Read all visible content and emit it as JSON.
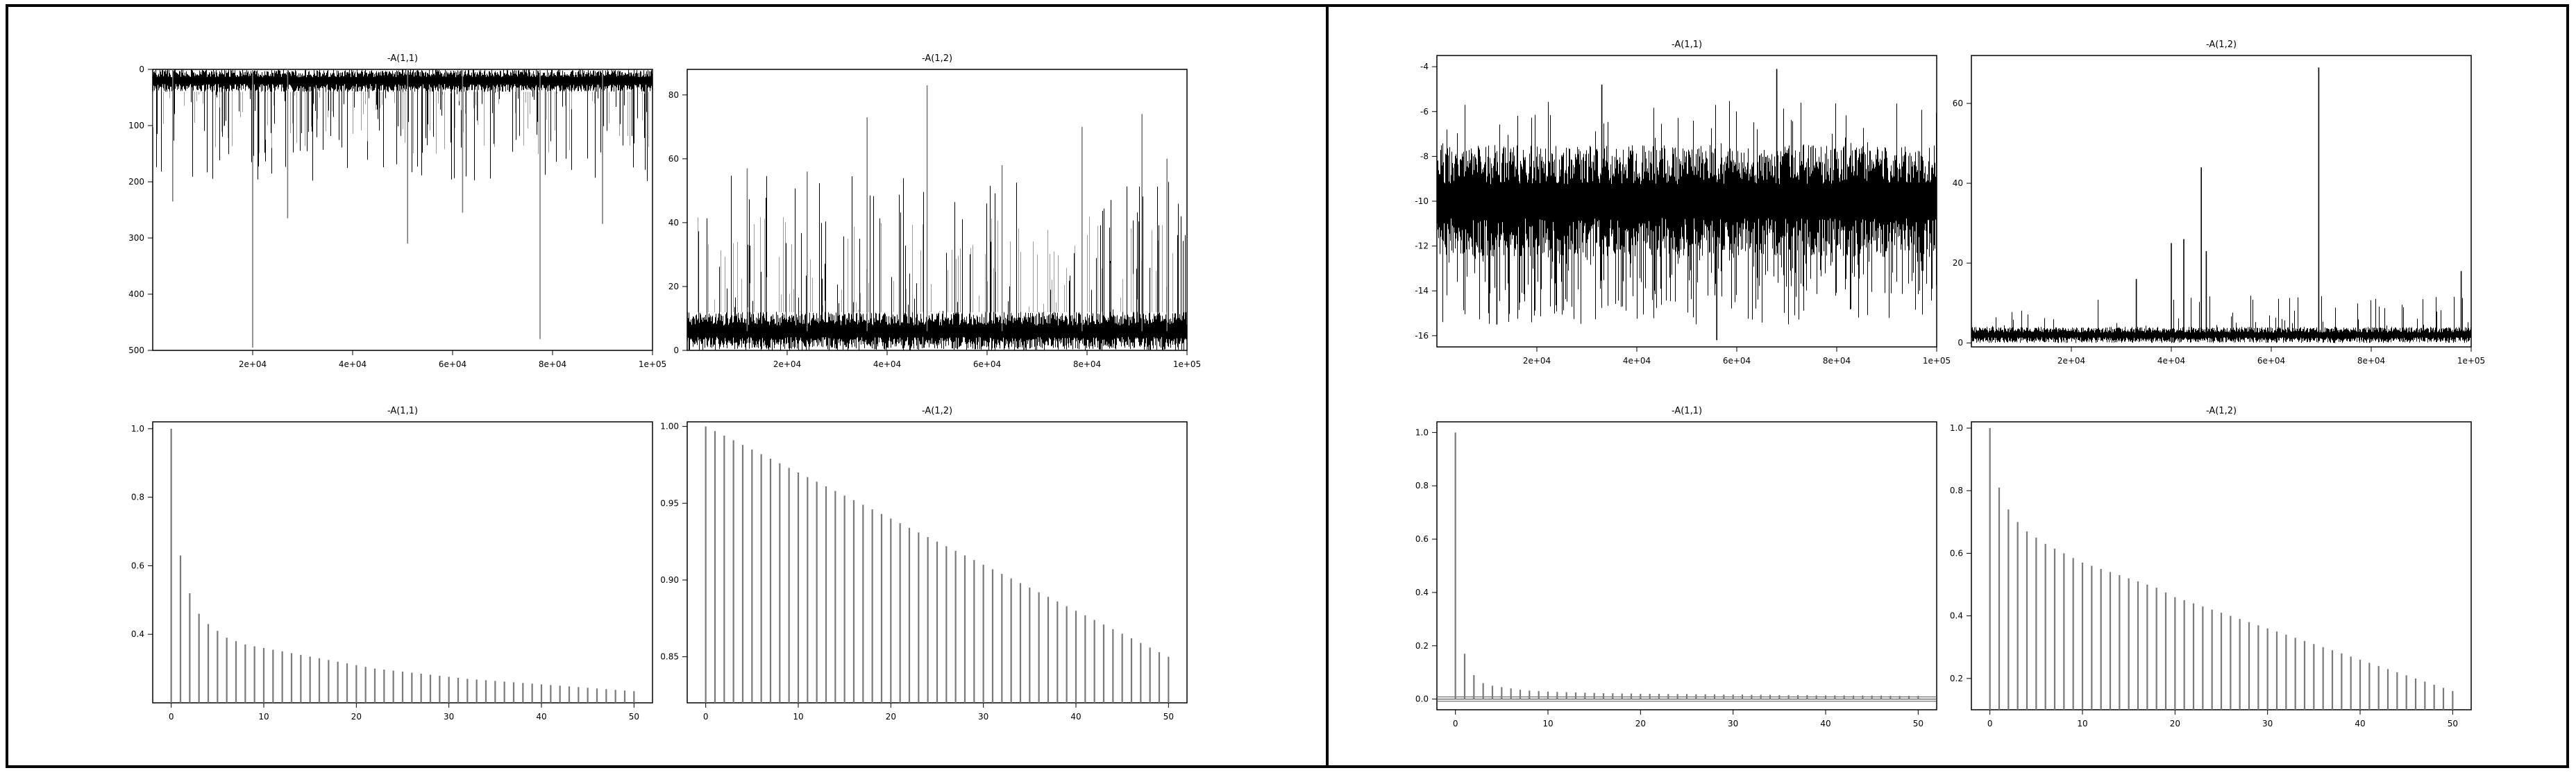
{
  "figure": {
    "left_panel": {
      "name": "left"
    },
    "right_panel": {
      "name": "right"
    }
  },
  "chart_data": [
    {
      "id": "L_trace_11",
      "type": "line",
      "title": "-A(1,1)",
      "x_ticks": [
        "2e+04",
        "4e+04",
        "6e+04",
        "8e+04",
        "1e+05"
      ],
      "x_tick_values": [
        20000,
        40000,
        60000,
        80000,
        100000
      ],
      "xlim": [
        0,
        100000
      ],
      "y_ticks": [
        "0",
        "100",
        "200",
        "300",
        "400",
        "500"
      ],
      "y_tick_values": [
        0,
        100,
        200,
        300,
        400,
        500
      ],
      "ylim": [
        500,
        0
      ],
      "y_reversed": true,
      "band": {
        "low": 0,
        "high": 40,
        "spike_min": 40,
        "spike_max": 200,
        "spike_freq": 0.18
      },
      "spikes": [
        {
          "x": 20000,
          "y": 495
        },
        {
          "x": 77500,
          "y": 480
        },
        {
          "x": 51000,
          "y": 310
        },
        {
          "x": 90000,
          "y": 275
        },
        {
          "x": 27000,
          "y": 265
        },
        {
          "x": 4000,
          "y": 235
        },
        {
          "x": 62000,
          "y": 255
        }
      ],
      "color": "#000000"
    },
    {
      "id": "L_trace_12",
      "type": "line",
      "title": "-A(1,2)",
      "x_ticks": [
        "2e+04",
        "4e+04",
        "6e+04",
        "8e+04",
        "1e+05"
      ],
      "x_tick_values": [
        20000,
        40000,
        60000,
        80000,
        100000
      ],
      "xlim": [
        0,
        100000
      ],
      "y_ticks": [
        "0",
        "20",
        "40",
        "60",
        "80"
      ],
      "y_tick_values": [
        0,
        20,
        40,
        60,
        80
      ],
      "ylim": [
        0,
        88
      ],
      "y_reversed": false,
      "band": {
        "low": 0,
        "high": 12,
        "spike_min": 12,
        "spike_max": 55,
        "spike_freq": 0.12
      },
      "spikes": [
        {
          "x": 48000,
          "y": 83
        },
        {
          "x": 36000,
          "y": 73
        },
        {
          "x": 91000,
          "y": 74
        },
        {
          "x": 79000,
          "y": 70
        },
        {
          "x": 12000,
          "y": 57
        },
        {
          "x": 24000,
          "y": 56
        },
        {
          "x": 63000,
          "y": 58
        },
        {
          "x": 96000,
          "y": 60
        }
      ],
      "color": "#000000"
    },
    {
      "id": "L_acf_11",
      "type": "bar",
      "title": "-A(1,1)",
      "x_ticks": [
        "0",
        "10",
        "20",
        "30",
        "40",
        "50"
      ],
      "x_tick_values": [
        0,
        10,
        20,
        30,
        40,
        50
      ],
      "xlim": [
        -2,
        52
      ],
      "y_ticks": [
        "0.4",
        "0.6",
        "0.8",
        "1.0"
      ],
      "y_tick_values": [
        0.4,
        0.6,
        0.8,
        1.0
      ],
      "ylim": [
        0.2,
        1.02
      ],
      "lags": [
        0,
        1,
        2,
        3,
        4,
        5,
        6,
        7,
        8,
        9,
        10,
        11,
        12,
        13,
        14,
        15,
        16,
        17,
        18,
        19,
        20,
        21,
        22,
        23,
        24,
        25,
        26,
        27,
        28,
        29,
        30,
        31,
        32,
        33,
        34,
        35,
        36,
        37,
        38,
        39,
        40,
        41,
        42,
        43,
        44,
        45,
        46,
        47,
        48,
        49,
        50
      ],
      "values": [
        1.0,
        0.63,
        0.52,
        0.46,
        0.43,
        0.41,
        0.39,
        0.38,
        0.37,
        0.365,
        0.36,
        0.355,
        0.35,
        0.345,
        0.34,
        0.335,
        0.33,
        0.325,
        0.32,
        0.315,
        0.31,
        0.305,
        0.3,
        0.297,
        0.294,
        0.291,
        0.288,
        0.285,
        0.282,
        0.279,
        0.276,
        0.273,
        0.27,
        0.268,
        0.266,
        0.264,
        0.262,
        0.26,
        0.258,
        0.256,
        0.254,
        0.252,
        0.25,
        0.248,
        0.246,
        0.244,
        0.242,
        0.24,
        0.238,
        0.236,
        0.234
      ],
      "color": "#7a7a7a"
    },
    {
      "id": "L_acf_12",
      "type": "bar",
      "title": "-A(1,2)",
      "x_ticks": [
        "0",
        "10",
        "20",
        "30",
        "40",
        "50"
      ],
      "x_tick_values": [
        0,
        10,
        20,
        30,
        40,
        50
      ],
      "xlim": [
        -2,
        52
      ],
      "y_ticks": [
        "0.85",
        "0.90",
        "0.95",
        "1.00"
      ],
      "y_tick_values": [
        0.85,
        0.9,
        0.95,
        1.0
      ],
      "ylim": [
        0.82,
        1.003
      ],
      "lags": [
        0,
        1,
        2,
        3,
        4,
        5,
        6,
        7,
        8,
        9,
        10,
        11,
        12,
        13,
        14,
        15,
        16,
        17,
        18,
        19,
        20,
        21,
        22,
        23,
        24,
        25,
        26,
        27,
        28,
        29,
        30,
        31,
        32,
        33,
        34,
        35,
        36,
        37,
        38,
        39,
        40,
        41,
        42,
        43,
        44,
        45,
        46,
        47,
        48,
        49,
        50
      ],
      "values": [
        1.0,
        0.997,
        0.994,
        0.991,
        0.988,
        0.985,
        0.982,
        0.979,
        0.976,
        0.973,
        0.97,
        0.967,
        0.964,
        0.961,
        0.958,
        0.955,
        0.952,
        0.949,
        0.946,
        0.943,
        0.94,
        0.937,
        0.934,
        0.931,
        0.928,
        0.925,
        0.922,
        0.919,
        0.916,
        0.913,
        0.91,
        0.907,
        0.904,
        0.901,
        0.898,
        0.895,
        0.892,
        0.889,
        0.886,
        0.883,
        0.88,
        0.877,
        0.874,
        0.871,
        0.868,
        0.865,
        0.862,
        0.859,
        0.856,
        0.853,
        0.85
      ],
      "color": "#7a7a7a"
    },
    {
      "id": "R_trace_11",
      "type": "line",
      "title": "-A(1,1)",
      "x_ticks": [
        "2e+04",
        "4e+04",
        "6e+04",
        "8e+04",
        "1e+05"
      ],
      "x_tick_values": [
        20000,
        40000,
        60000,
        80000,
        100000
      ],
      "xlim": [
        0,
        100000
      ],
      "y_ticks": [
        "-4",
        "-6",
        "-8",
        "-10",
        "-12",
        "-14",
        "-16"
      ],
      "y_tick_values": [
        -4,
        -6,
        -8,
        -10,
        -12,
        -14,
        -16
      ],
      "ylim": [
        -16.5,
        -3.5
      ],
      "y_reversed": false,
      "band": {
        "low": -12.5,
        "high": -7.5,
        "spike_min": -15.5,
        "spike_max": -5.5,
        "spike_freq": 0.25
      },
      "spikes": [
        {
          "x": 68000,
          "y": -4.1
        },
        {
          "x": 56000,
          "y": -16.2
        },
        {
          "x": 33000,
          "y": -4.8
        },
        {
          "x": 12000,
          "y": -15.5
        }
      ],
      "color": "#000000"
    },
    {
      "id": "R_trace_12",
      "type": "line",
      "title": "-A(1,2)",
      "x_ticks": [
        "2e+04",
        "4e+04",
        "6e+04",
        "8e+04",
        "1e+05"
      ],
      "x_tick_values": [
        20000,
        40000,
        60000,
        80000,
        100000
      ],
      "xlim": [
        0,
        100000
      ],
      "y_ticks": [
        "0",
        "20",
        "40",
        "60"
      ],
      "y_tick_values": [
        0,
        20,
        40,
        60
      ],
      "ylim": [
        -1,
        72
      ],
      "y_reversed": false,
      "band": {
        "low": 0,
        "high": 4,
        "spike_min": 4,
        "spike_max": 12,
        "spike_freq": 0.08
      },
      "spikes": [
        {
          "x": 69500,
          "y": 69
        },
        {
          "x": 46000,
          "y": 44
        },
        {
          "x": 40000,
          "y": 25
        },
        {
          "x": 42500,
          "y": 26
        },
        {
          "x": 47000,
          "y": 23
        },
        {
          "x": 98000,
          "y": 18
        },
        {
          "x": 33000,
          "y": 16
        }
      ],
      "color": "#000000"
    },
    {
      "id": "R_acf_11",
      "type": "bar",
      "title": "-A(1,1)",
      "x_ticks": [
        "0",
        "10",
        "20",
        "30",
        "40",
        "50"
      ],
      "x_tick_values": [
        0,
        10,
        20,
        30,
        40,
        50
      ],
      "xlim": [
        -2,
        52
      ],
      "y_ticks": [
        "0.0",
        "0.2",
        "0.4",
        "0.6",
        "0.8",
        "1.0"
      ],
      "y_tick_values": [
        0.0,
        0.2,
        0.4,
        0.6,
        0.8,
        1.0
      ],
      "ylim": [
        -0.04,
        1.04
      ],
      "lags": [
        0,
        1,
        2,
        3,
        4,
        5,
        6,
        7,
        8,
        9,
        10,
        11,
        12,
        13,
        14,
        15,
        16,
        17,
        18,
        19,
        20,
        21,
        22,
        23,
        24,
        25,
        26,
        27,
        28,
        29,
        30,
        31,
        32,
        33,
        34,
        35,
        36,
        37,
        38,
        39,
        40,
        41,
        42,
        43,
        44,
        45,
        46,
        47,
        48,
        49,
        50
      ],
      "values": [
        1.0,
        0.17,
        0.09,
        0.06,
        0.05,
        0.045,
        0.04,
        0.035,
        0.032,
        0.03,
        0.028,
        0.027,
        0.026,
        0.025,
        0.024,
        0.023,
        0.022,
        0.022,
        0.021,
        0.021,
        0.02,
        0.02,
        0.02,
        0.019,
        0.019,
        0.019,
        0.018,
        0.018,
        0.018,
        0.017,
        0.017,
        0.017,
        0.016,
        0.016,
        0.016,
        0.015,
        0.015,
        0.015,
        0.015,
        0.014,
        0.014,
        0.014,
        0.014,
        0.013,
        0.013,
        0.013,
        0.013,
        0.012,
        0.012,
        0.012,
        0.012
      ],
      "ci": [
        0.008,
        -0.008
      ],
      "color": "#7a7a7a"
    },
    {
      "id": "R_acf_12",
      "type": "bar",
      "title": "-A(1,2)",
      "x_ticks": [
        "0",
        "10",
        "20",
        "30",
        "40",
        "50"
      ],
      "x_tick_values": [
        0,
        10,
        20,
        30,
        40,
        50
      ],
      "xlim": [
        -2,
        52
      ],
      "y_ticks": [
        "0.2",
        "0.4",
        "0.6",
        "0.8",
        "1.0"
      ],
      "y_tick_values": [
        0.2,
        0.4,
        0.6,
        0.8,
        1.0
      ],
      "ylim": [
        0.1,
        1.02
      ],
      "lags": [
        0,
        1,
        2,
        3,
        4,
        5,
        6,
        7,
        8,
        9,
        10,
        11,
        12,
        13,
        14,
        15,
        16,
        17,
        18,
        19,
        20,
        21,
        22,
        23,
        24,
        25,
        26,
        27,
        28,
        29,
        30,
        31,
        32,
        33,
        34,
        35,
        36,
        37,
        38,
        39,
        40,
        41,
        42,
        43,
        44,
        45,
        46,
        47,
        48,
        49,
        50
      ],
      "values": [
        1.0,
        0.81,
        0.74,
        0.7,
        0.67,
        0.65,
        0.63,
        0.615,
        0.6,
        0.585,
        0.57,
        0.56,
        0.55,
        0.54,
        0.53,
        0.52,
        0.51,
        0.5,
        0.49,
        0.475,
        0.46,
        0.45,
        0.44,
        0.43,
        0.42,
        0.41,
        0.4,
        0.39,
        0.38,
        0.37,
        0.36,
        0.35,
        0.34,
        0.33,
        0.32,
        0.31,
        0.3,
        0.29,
        0.28,
        0.27,
        0.26,
        0.25,
        0.24,
        0.23,
        0.22,
        0.21,
        0.2,
        0.19,
        0.18,
        0.17,
        0.16
      ],
      "color": "#7a7a7a"
    }
  ]
}
